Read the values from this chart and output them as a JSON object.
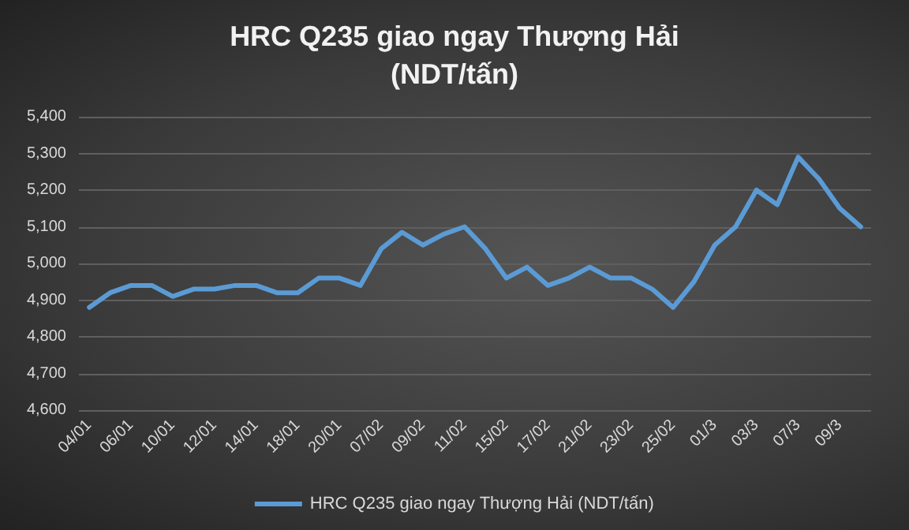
{
  "chart_data": {
    "type": "line",
    "title": "HRC Q235 giao ngay Thượng Hải\n(NDT/tấn)",
    "categories": [
      "04/01",
      null,
      "06/01",
      null,
      "10/01",
      null,
      "12/01",
      null,
      "14/01",
      null,
      "18/01",
      null,
      "20/01",
      null,
      "07/02",
      null,
      "09/02",
      null,
      "11/02",
      null,
      "15/02",
      null,
      "17/02",
      null,
      "21/02",
      null,
      "23/02",
      null,
      "25/02",
      null,
      "01/3",
      null,
      "03/3",
      null,
      "07/3",
      null,
      "09/3",
      null
    ],
    "series": [
      {
        "name": "HRC Q235 giao ngay Thượng Hải (NDT/tấn)",
        "color": "#5b9bd5",
        "values": [
          4880,
          4920,
          4940,
          4940,
          4910,
          4930,
          4930,
          4940,
          4940,
          4920,
          4920,
          4960,
          4960,
          4940,
          5040,
          5085,
          5050,
          5080,
          5100,
          5040,
          4960,
          4990,
          4940,
          4960,
          4990,
          4960,
          4960,
          4930,
          4880,
          4950,
          5050,
          5100,
          5200,
          5160,
          5290,
          5230,
          5150,
          5100
        ]
      }
    ],
    "ylim": [
      4600,
      5400
    ],
    "yticks": [
      {
        "value": 4600,
        "label": "4,600"
      },
      {
        "value": 4700,
        "label": "4,700"
      },
      {
        "value": 4800,
        "label": "4,800"
      },
      {
        "value": 4900,
        "label": "4,900"
      },
      {
        "value": 5000,
        "label": "5,000"
      },
      {
        "value": 5100,
        "label": "5,100"
      },
      {
        "value": 5200,
        "label": "5,200"
      },
      {
        "value": 5300,
        "label": "5,300"
      },
      {
        "value": 5400,
        "label": "5,400"
      }
    ],
    "grid": "y",
    "legend": "bottom",
    "marker": "none",
    "line_style": "solid"
  }
}
